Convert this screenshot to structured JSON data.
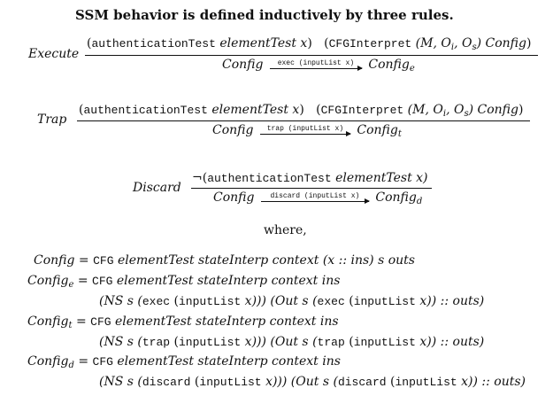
{
  "heading": "SSM behavior is defined inductively by three rules.",
  "where": "where,",
  "rules": {
    "execute": {
      "name": "Execute",
      "p1_kw": "authenticationTest",
      "p1_args": "elementTest x",
      "p2_kw": "CFGInterpret",
      "p2_args": "(M, O",
      "p2_i": "i",
      "p2_mid": ", O",
      "p2_s": "s",
      "p2_end": ") Config",
      "concl_from": "Config",
      "arrow_kw": "exec",
      "arrow_arg": "(inputList x)",
      "concl_to": "Config",
      "concl_sub": "e"
    },
    "trap": {
      "name": "Trap",
      "p1_kw": "authenticationTest",
      "p1_args": "elementTest x",
      "p2_kw": "CFGInterpret",
      "p2_args": "(M, O",
      "p2_i": "i",
      "p2_mid": ", O",
      "p2_s": "s",
      "p2_end": ") Config",
      "concl_from": "Config",
      "arrow_kw": "trap",
      "arrow_arg": "(inputList x)",
      "concl_to": "Config",
      "concl_sub": "t"
    },
    "discard": {
      "name": "Discard",
      "neg": "¬(",
      "p1_kw": "authenticationTest",
      "p1_args": "elementTest x)",
      "concl_from": "Config",
      "arrow_kw": "discard",
      "arrow_arg": "(inputList x)",
      "concl_to": "Config",
      "concl_sub": "d"
    }
  },
  "defs": {
    "config": {
      "lhs": "Config",
      "kw": "CFG",
      "rest": "elementTest stateInterp context (x :: ins) s outs"
    },
    "config_e": {
      "lhs": "Config",
      "sub": "e",
      "kw": "CFG",
      "rest": "elementTest stateInterp context ins",
      "l2_a": "(NS s (",
      "l2_kw1": "exec",
      "l2_b": "(",
      "l2_kw2": "inputList",
      "l2_c": "x))) (Out s (",
      "l2_kw3": "exec",
      "l2_d": "(",
      "l2_kw4": "inputList",
      "l2_e": "x)) :: outs)"
    },
    "config_t": {
      "lhs": "Config",
      "sub": "t",
      "kw": "CFG",
      "rest": "elementTest stateInterp context ins",
      "l2_a": "(NS s (",
      "l2_kw1": "trap",
      "l2_b": "(",
      "l2_kw2": "inputList",
      "l2_c": "x))) (Out s (",
      "l2_kw3": "trap",
      "l2_d": "(",
      "l2_kw4": "inputList",
      "l2_e": "x)) :: outs)"
    },
    "config_d": {
      "lhs": "Config",
      "sub": "d",
      "kw": "CFG",
      "rest": "elementTest stateInterp context ins",
      "l2_a": "(NS s (",
      "l2_kw1": "discard",
      "l2_b": "(",
      "l2_kw2": "inputList",
      "l2_c": "x))) (Out s (",
      "l2_kw3": "discard",
      "l2_d": "(",
      "l2_kw4": "inputList",
      "l2_e": "x)) :: outs)"
    }
  }
}
